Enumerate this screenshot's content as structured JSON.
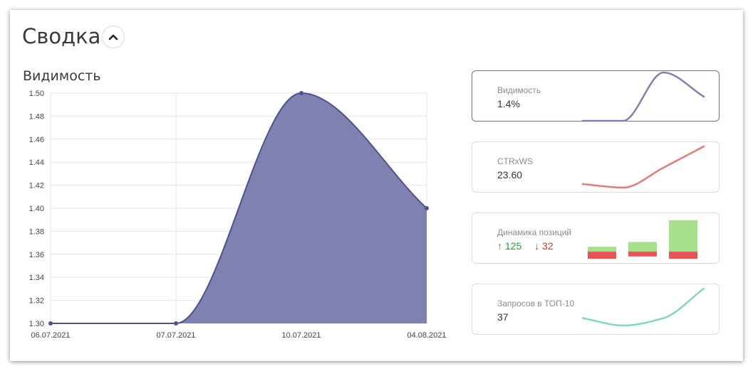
{
  "header": {
    "title": "Сводка"
  },
  "main_chart": {
    "section_title": "Видимость"
  },
  "chart_data": [
    {
      "type": "area",
      "title": "Видимость",
      "categories": [
        "06.07.2021",
        "07.07.2021",
        "10.07.2021",
        "04.08.2021"
      ],
      "values": [
        1.3,
        1.3,
        1.5,
        1.4
      ],
      "ylim": [
        1.3,
        1.5
      ],
      "yticks": [
        "1.50",
        "1.48",
        "1.46",
        "1.44",
        "1.42",
        "1.40",
        "1.38",
        "1.36",
        "1.34",
        "1.32",
        "1.30"
      ],
      "grid": true,
      "colors": {
        "fill": "#7f82b0",
        "line": "#4e5190",
        "grid": "#e6e6e6"
      }
    },
    {
      "type": "line",
      "title": "Видимость",
      "values": [
        1.3,
        1.3,
        1.5,
        1.4
      ],
      "colors": {
        "line": "#7f82b0"
      }
    },
    {
      "type": "line",
      "title": "CTRxWS",
      "values": [
        20.4,
        20.1,
        21.8,
        23.6
      ],
      "colors": {
        "line": "#e57a7a"
      }
    },
    {
      "type": "bar",
      "title": "Динамика позиций",
      "series": [
        {
          "values": [
            2,
            4,
            13
          ]
        },
        {
          "values": [
            3,
            2,
            3
          ]
        }
      ],
      "colors": {
        "up": "#a6e08a",
        "down": "#e85555"
      }
    },
    {
      "type": "line",
      "title": "Запросов в ТОП-10",
      "values": [
        33,
        32,
        33,
        37
      ],
      "colors": {
        "line": "#7fd8b8"
      }
    }
  ],
  "cards": [
    {
      "label": "Видимость",
      "value": "1.4%"
    },
    {
      "label": "CTRxWS",
      "value": "23.60"
    },
    {
      "label": "Динамика позиций",
      "up": "↑ 125",
      "down": "↓ 32"
    },
    {
      "label": "Запросов в ТОП-10",
      "value": "37"
    }
  ]
}
